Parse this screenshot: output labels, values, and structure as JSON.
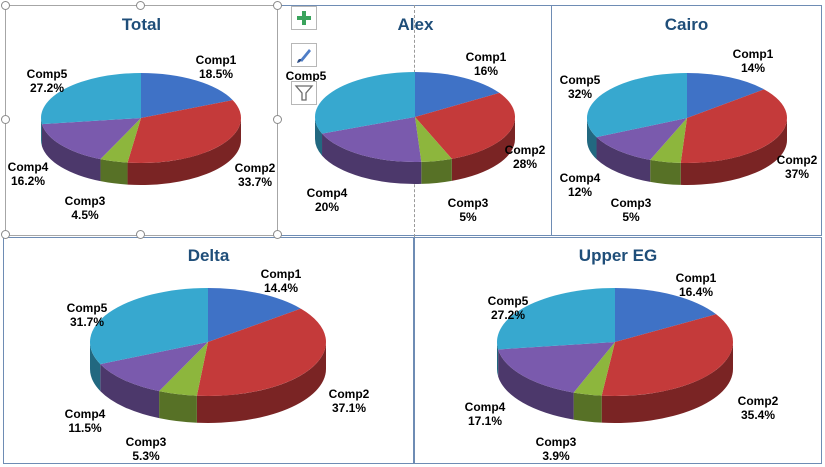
{
  "colors": {
    "comp1": "#3f72c6",
    "comp2": "#c43a3a",
    "comp3": "#8db63d",
    "comp4": "#7a5aad",
    "comp5": "#37a8cf",
    "title": "#1f4e79",
    "panel_border": "#6e8cb4"
  },
  "toolbar": {
    "add_icon": "plus-icon",
    "style_icon": "paintbrush-icon",
    "filter_icon": "funnel-icon"
  },
  "chart_data": [
    {
      "type": "pie",
      "title": "Total",
      "categories": [
        "Comp1",
        "Comp2",
        "Comp3",
        "Comp4",
        "Comp5"
      ],
      "values": [
        18.5,
        33.7,
        4.5,
        16.2,
        27.2
      ],
      "labels": [
        "18.5%",
        "33.7%",
        "4.5%",
        "16.2%",
        "27.2%"
      ],
      "style": "3d"
    },
    {
      "type": "pie",
      "title": "Alex",
      "categories": [
        "Comp1",
        "Comp2",
        "Comp3",
        "Comp4",
        "Comp5"
      ],
      "values": [
        16,
        28,
        5,
        20,
        31
      ],
      "labels": [
        "16%",
        "28%",
        "5%",
        "20%",
        ""
      ],
      "style": "3d"
    },
    {
      "type": "pie",
      "title": "Cairo",
      "categories": [
        "Comp1",
        "Comp2",
        "Comp3",
        "Comp4",
        "Comp5"
      ],
      "values": [
        14,
        37,
        5,
        12,
        32
      ],
      "labels": [
        "14%",
        "37%",
        "5%",
        "12%",
        "32%"
      ],
      "style": "3d"
    },
    {
      "type": "pie",
      "title": "Delta",
      "categories": [
        "Comp1",
        "Comp2",
        "Comp3",
        "Comp4",
        "Comp5"
      ],
      "values": [
        14.4,
        37.1,
        5.3,
        11.5,
        31.7
      ],
      "labels": [
        "14.4%",
        "37.1%",
        "5.3%",
        "11.5%",
        "31.7%"
      ],
      "style": "3d"
    },
    {
      "type": "pie",
      "title": "Upper EG",
      "categories": [
        "Comp1",
        "Comp2",
        "Comp3",
        "Comp4",
        "Comp5"
      ],
      "values": [
        16.4,
        35.4,
        3.9,
        17.1,
        27.2
      ],
      "labels": [
        "16.4%",
        "35.4%",
        "3.9%",
        "17.1%",
        "27.2%"
      ],
      "style": "3d"
    }
  ]
}
